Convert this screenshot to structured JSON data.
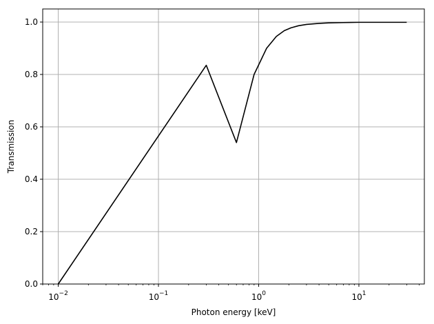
{
  "chart_data": {
    "type": "line",
    "xlabel": "Photon energy [keV]",
    "ylabel": "Transmission",
    "x_scale": "log",
    "xlim": [
      0.007,
      45
    ],
    "ylim": [
      0,
      1.05
    ],
    "grid": true,
    "line_color": "#000000",
    "grid_color": "#b0b0b0",
    "x_ticks": [
      {
        "value": 0.01,
        "base": "10",
        "exp": "−2"
      },
      {
        "value": 0.1,
        "base": "10",
        "exp": "−1"
      },
      {
        "value": 1,
        "base": "10",
        "exp": "0"
      },
      {
        "value": 10,
        "base": "10",
        "exp": "1"
      }
    ],
    "y_ticks": [
      {
        "value": 0.0,
        "label": "0.0"
      },
      {
        "value": 0.2,
        "label": "0.2"
      },
      {
        "value": 0.4,
        "label": "0.4"
      },
      {
        "value": 0.6,
        "label": "0.6"
      },
      {
        "value": 0.8,
        "label": "0.8"
      },
      {
        "value": 1.0,
        "label": "1.0"
      }
    ],
    "series": [
      {
        "x": [
          0.01,
          0.3,
          0.6,
          0.9,
          1.2,
          1.5,
          1.8,
          2.1,
          2.5,
          3,
          4,
          5,
          7,
          10,
          15,
          20,
          30
        ],
        "y": [
          0.0,
          0.835,
          0.54,
          0.8,
          0.9,
          0.945,
          0.967,
          0.978,
          0.986,
          0.991,
          0.995,
          0.997,
          0.998,
          0.999,
          0.999,
          0.999,
          0.999
        ]
      }
    ]
  }
}
